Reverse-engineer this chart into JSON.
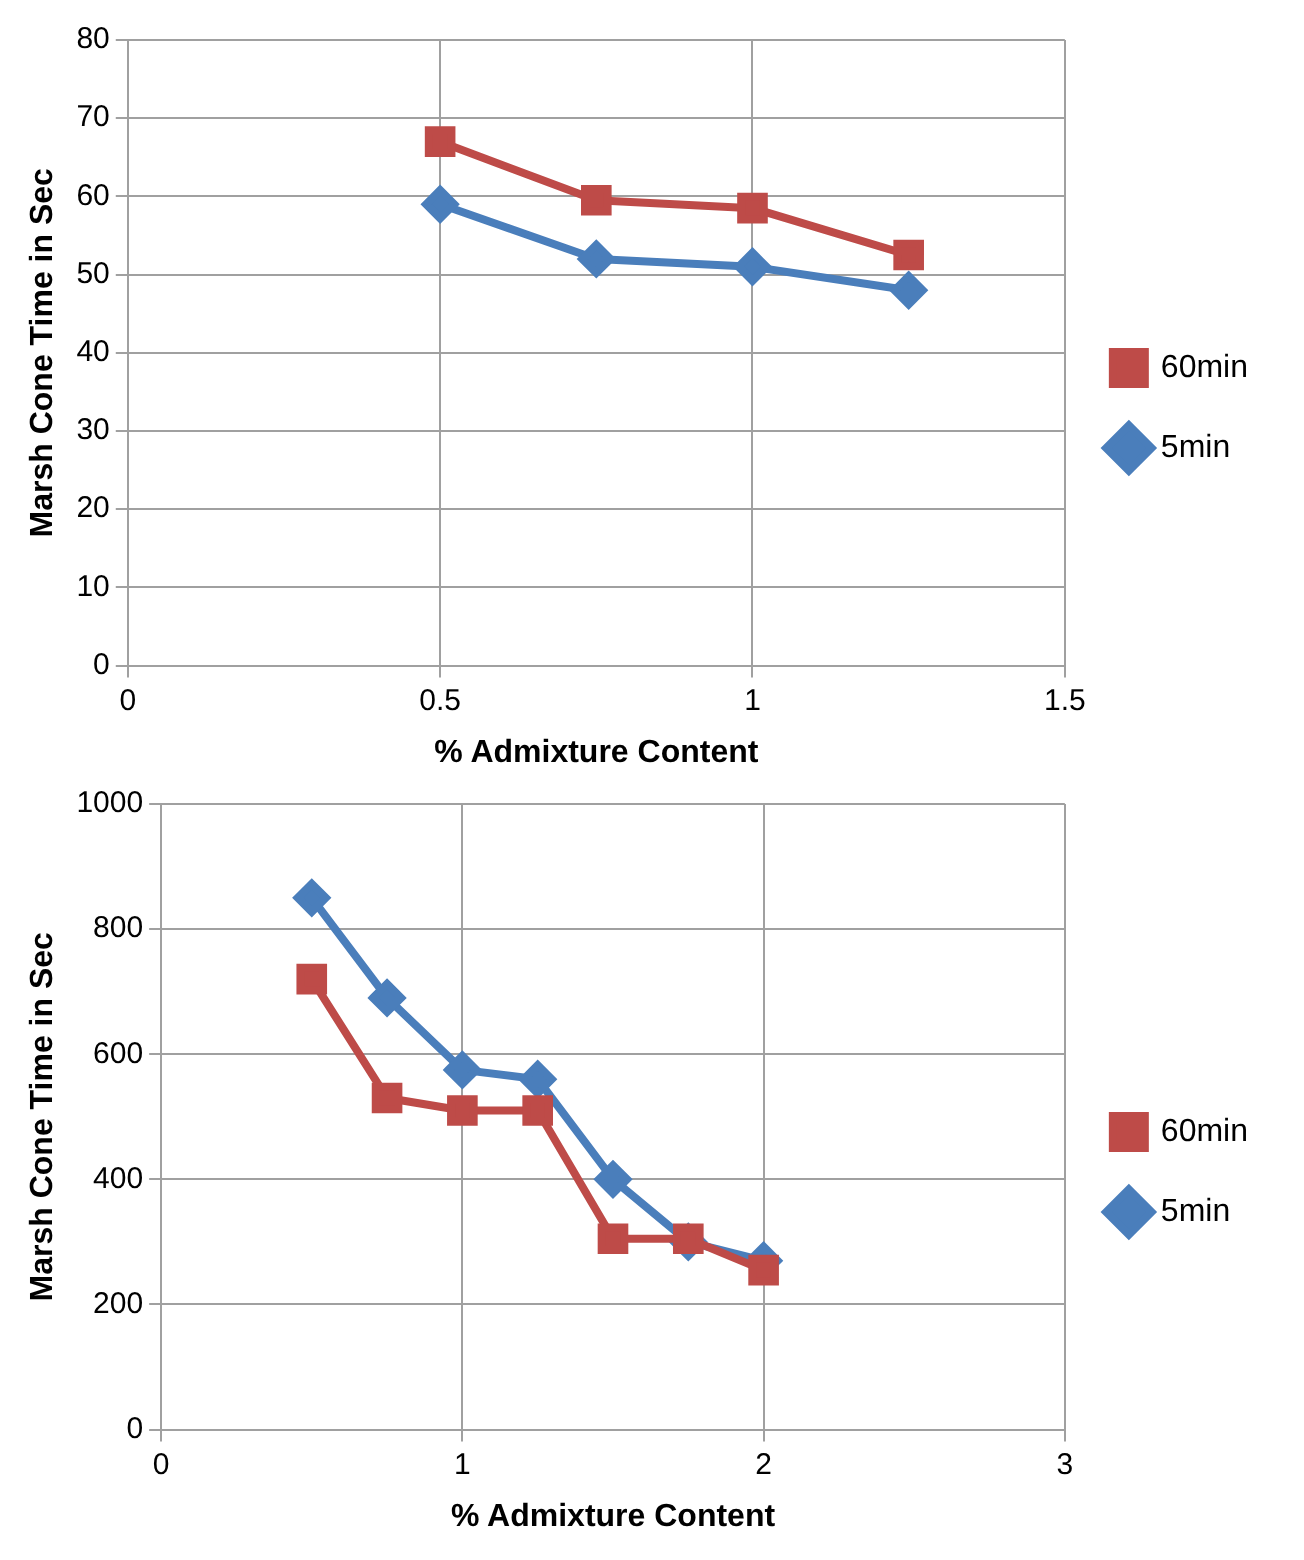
{
  "chart_data": [
    {
      "type": "line",
      "xlabel": "% Admixture Content",
      "ylabel": "Marsh Cone Time in Sec",
      "x": [
        0.5,
        0.75,
        1,
        1.25
      ],
      "xlim": [
        0,
        1.5
      ],
      "xticks": [
        0,
        0.5,
        1,
        1.5
      ],
      "ylim": [
        0,
        80
      ],
      "yticks": [
        0,
        10,
        20,
        30,
        40,
        50,
        60,
        70,
        80
      ],
      "grid": true,
      "legend": "right",
      "series": [
        {
          "name": "5min",
          "color": "#4a7ebb",
          "marker": "diamond",
          "values": [
            59,
            52,
            51,
            48
          ]
        },
        {
          "name": "60min",
          "color": "#be4b48",
          "marker": "square",
          "values": [
            67,
            59.5,
            58.5,
            52.5
          ]
        }
      ]
    },
    {
      "type": "line",
      "xlabel": "% Admixture Content",
      "ylabel": "Marsh Cone Time in Sec",
      "x": [
        0.5,
        0.75,
        1,
        1.25,
        1.5,
        1.75,
        2
      ],
      "xlim": [
        0,
        3
      ],
      "xticks": [
        0,
        1,
        2,
        3
      ],
      "ylim": [
        0,
        1000
      ],
      "yticks": [
        0,
        200,
        400,
        600,
        800,
        1000
      ],
      "grid": true,
      "legend": "right",
      "series": [
        {
          "name": "5min",
          "color": "#4a7ebb",
          "marker": "diamond",
          "values": [
            850,
            690,
            575,
            560,
            400,
            300,
            270
          ]
        },
        {
          "name": "60min",
          "color": "#be4b48",
          "marker": "square",
          "values": [
            720,
            530,
            510,
            510,
            305,
            305,
            255
          ]
        }
      ]
    }
  ]
}
